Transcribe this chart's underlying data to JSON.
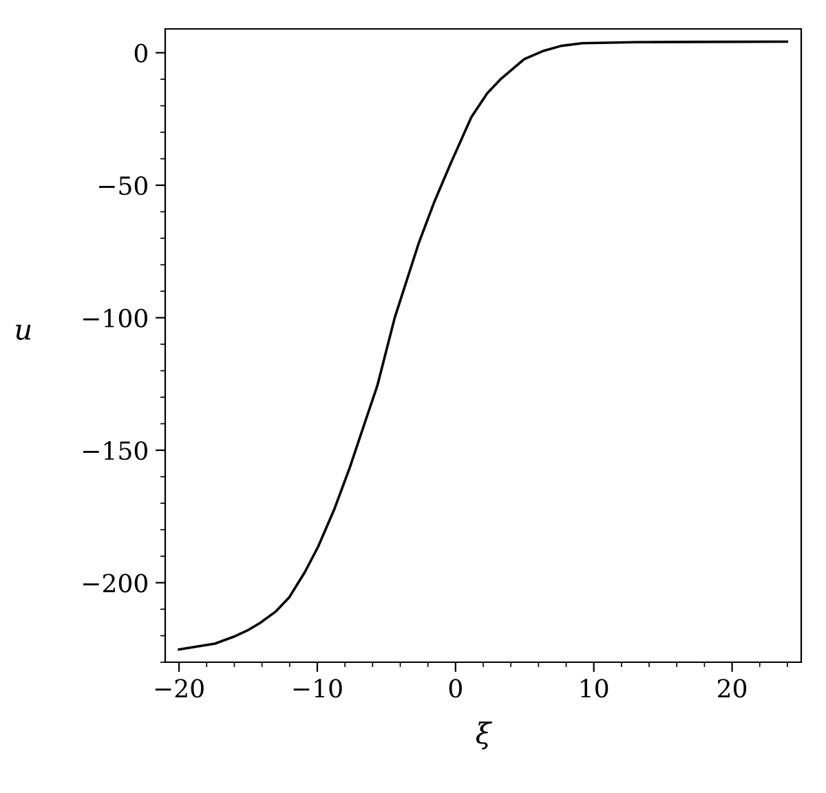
{
  "chart_data": {
    "type": "line",
    "xlabel": "ξ",
    "ylabel": "u",
    "x": [
      -20,
      -17.4,
      -16.05,
      -14.98,
      -14.14,
      -12.99,
      -12.04,
      -10.89,
      -9.93,
      -8.78,
      -7.64,
      -6.49,
      -5.65,
      -4.4,
      -2.68,
      -1.53,
      -0.39,
      1.14,
      2.29,
      3.25,
      4.97,
      6.3,
      7.64,
      9.17,
      12.99,
      23.97
    ],
    "series": [
      {
        "color": "#000000",
        "values": [
          -225.2,
          -223,
          -220.4,
          -217.8,
          -215.2,
          -210.8,
          -205.6,
          -195.9,
          -186.3,
          -172.4,
          -156.4,
          -138.5,
          -125.5,
          -100,
          -72.1,
          -56.2,
          -42.2,
          -24.3,
          -15.3,
          -10,
          -2.4,
          0.6,
          2.6,
          3.6,
          4,
          4.2
        ]
      }
    ],
    "xlim": [
      -21,
      25
    ],
    "ylim": [
      -230,
      9
    ],
    "xticks": [
      {
        "value": -20,
        "label": "−20"
      },
      {
        "value": -18,
        "label": null
      },
      {
        "value": -16,
        "label": null
      },
      {
        "value": -14,
        "label": null
      },
      {
        "value": -12,
        "label": null
      },
      {
        "value": -10,
        "label": "−10"
      },
      {
        "value": -8,
        "label": null
      },
      {
        "value": -6,
        "label": null
      },
      {
        "value": -4,
        "label": null
      },
      {
        "value": -2,
        "label": null
      },
      0,
      {
        "value": 2,
        "label": null
      },
      {
        "value": 4,
        "label": null
      },
      {
        "value": 6,
        "label": null
      },
      {
        "value": 8,
        "label": null
      },
      10,
      {
        "value": 12,
        "label": null
      },
      {
        "value": 14,
        "label": null
      },
      {
        "value": 16,
        "label": null
      },
      {
        "value": 18,
        "label": null
      },
      20,
      {
        "value": 22,
        "label": null
      },
      {
        "value": 24,
        "label": null
      }
    ],
    "yticks": [
      {
        "value": -230,
        "label": null
      },
      {
        "value": -220,
        "label": null
      },
      {
        "value": -210,
        "label": null
      },
      {
        "value": -200,
        "label": "−200"
      },
      {
        "value": -190,
        "label": null
      },
      {
        "value": -180,
        "label": null
      },
      {
        "value": -170,
        "label": null
      },
      {
        "value": -160,
        "label": null
      },
      {
        "value": -150,
        "label": "−150"
      },
      {
        "value": -140,
        "label": null
      },
      {
        "value": -130,
        "label": null
      },
      {
        "value": -120,
        "label": null
      },
      {
        "value": -110,
        "label": null
      },
      {
        "value": -100,
        "label": "−100"
      },
      {
        "value": -90,
        "label": null
      },
      {
        "value": -80,
        "label": null
      },
      {
        "value": -70,
        "label": null
      },
      {
        "value": -60,
        "label": null
      },
      {
        "value": -50,
        "label": "−50"
      },
      {
        "value": -40,
        "label": null
      },
      {
        "value": -30,
        "label": null
      },
      {
        "value": -20,
        "label": null
      },
      {
        "value": -10,
        "label": null
      },
      0
    ],
    "line_style": "solid",
    "marker": "none",
    "grid": false,
    "legend": false
  }
}
